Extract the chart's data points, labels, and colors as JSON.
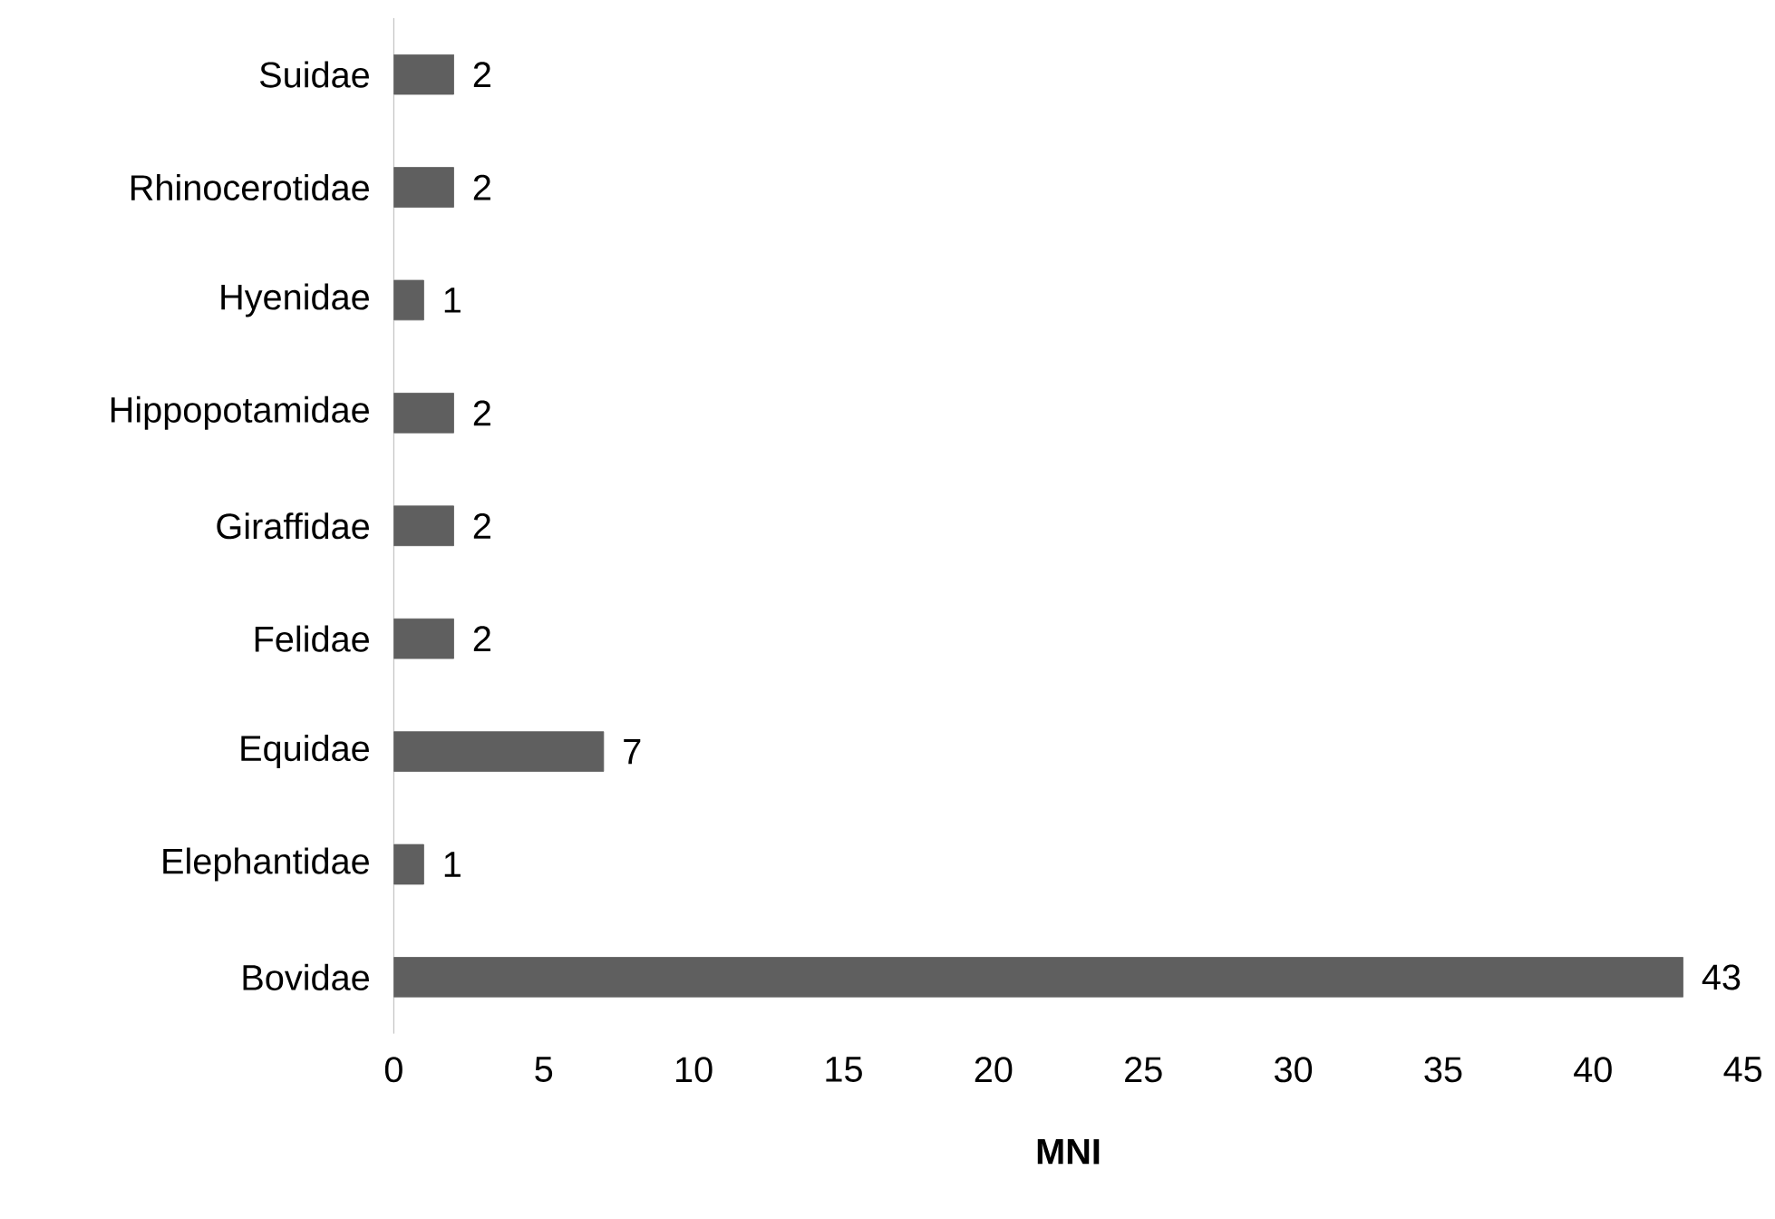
{
  "chart_data": {
    "type": "bar",
    "orientation": "horizontal",
    "xlabel": "MNI",
    "categories": [
      "Suidae",
      "Rhinocerotidae",
      "Hyenidae",
      "Hippopotamidae",
      "Giraffidae",
      "Felidae",
      "Equidae",
      "Elephantidae",
      "Bovidae"
    ],
    "values": [
      2,
      2,
      1,
      2,
      2,
      2,
      7,
      1,
      43
    ],
    "color": "#5f5f5f",
    "xlim": [
      0,
      45
    ],
    "xticks": [
      0,
      5,
      10,
      15,
      20,
      25,
      30,
      35,
      40,
      45
    ],
    "grid": false,
    "data_labels": true
  }
}
